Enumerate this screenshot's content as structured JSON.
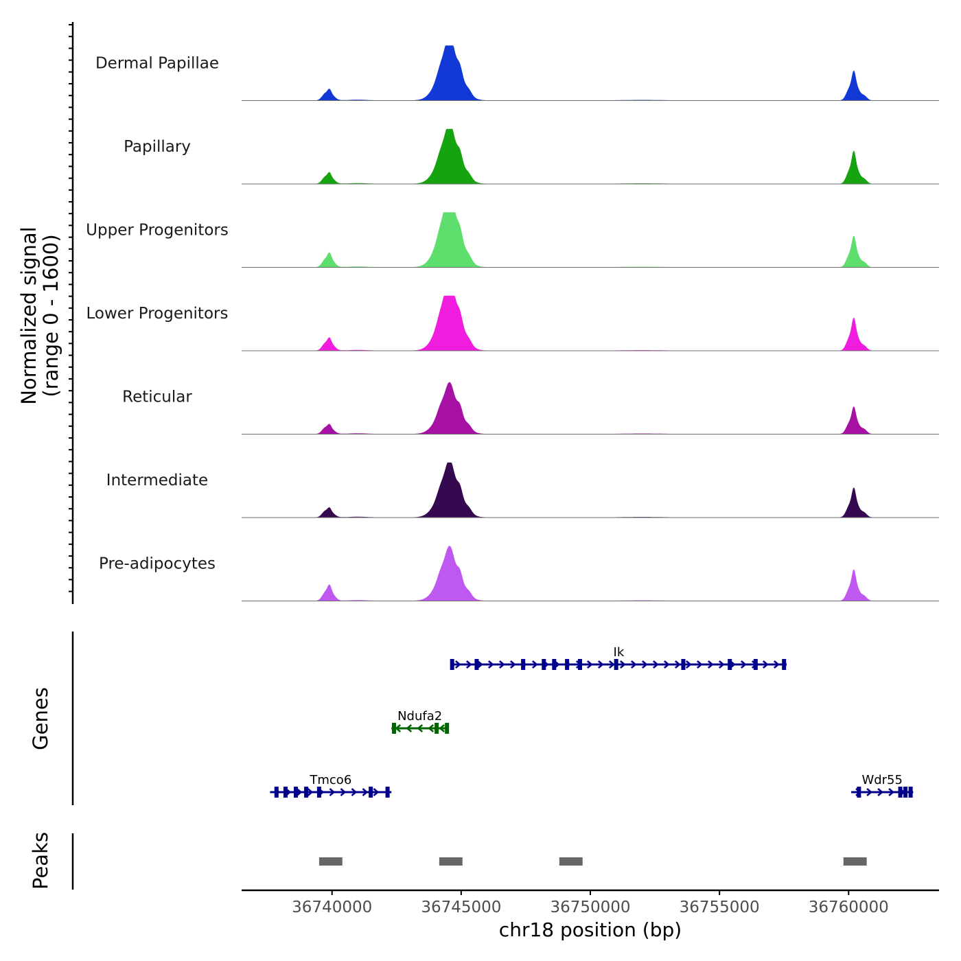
{
  "chart_data": {
    "type": "area",
    "title": "",
    "xlabel": "chr18 position (bp)",
    "ylabel_line1": "Normalized signal",
    "ylabel_line2": "(range 0 - 1600)",
    "xlim": [
      36736500,
      36763500
    ],
    "x_ticks": [
      36740000,
      36745000,
      36750000,
      36755000,
      36760000
    ],
    "x_tick_labels": [
      "36740000",
      "36745000",
      "36750000",
      "36755000",
      "36760000"
    ],
    "peak_positions": [
      36739900,
      36744550,
      36760200
    ],
    "tracks": [
      {
        "name": "Dermal Papillae",
        "color": "#1239d6",
        "peaks": [
          0.14,
          0.85,
          0.38
        ]
      },
      {
        "name": "Papillary",
        "color": "#15a30f",
        "peaks": [
          0.14,
          0.79,
          0.42
        ]
      },
      {
        "name": "Upper Progenitors",
        "color": "#5ede6c",
        "peaks": [
          0.18,
          1.0,
          0.4
        ]
      },
      {
        "name": "Lower Progenitors",
        "color": "#f01cde",
        "peaks": [
          0.16,
          0.96,
          0.42
        ]
      },
      {
        "name": "Reticular",
        "color": "#a611a3",
        "peaks": [
          0.12,
          0.66,
          0.35
        ]
      },
      {
        "name": "Intermediate",
        "color": "#35094f",
        "peaks": [
          0.12,
          0.74,
          0.38
        ]
      },
      {
        "name": "Pre-adipocytes",
        "color": "#bf58f0",
        "peaks": [
          0.2,
          0.7,
          0.4
        ]
      }
    ],
    "genes_label": "Genes",
    "genes": [
      {
        "name": "Ik",
        "start": 36744600,
        "end": 36757600,
        "strand": "+",
        "color": "#00008b",
        "exons": [
          36744650,
          36745600,
          36747400,
          36748200,
          36748600,
          36749100,
          36749600,
          36751000,
          36753600,
          36755400,
          36756400,
          36757500
        ]
      },
      {
        "name": "Ndufa2",
        "start": 36742300,
        "end": 36744500,
        "strand": "-",
        "color": "#006400",
        "exons": [
          36742400,
          36744050,
          36744450
        ]
      },
      {
        "name": "Tmco6",
        "start": 36737600,
        "end": 36742300,
        "strand": "+",
        "color": "#00008b",
        "exons": [
          36737850,
          36738200,
          36738600,
          36739000,
          36739500,
          36741500,
          36742150
        ]
      },
      {
        "name": "Wdr55",
        "start": 36760100,
        "end": 36762500,
        "strand": "+",
        "color": "#00008b",
        "exons": [
          36760400,
          36762000,
          36762200,
          36762400
        ]
      }
    ],
    "peaks_label": "Peaks",
    "peaks_color": "#666666",
    "peaks": [
      {
        "start": 36739500,
        "end": 36740400
      },
      {
        "start": 36744150,
        "end": 36745050
      },
      {
        "start": 36748800,
        "end": 36749700
      },
      {
        "start": 36759800,
        "end": 36760700
      }
    ]
  }
}
